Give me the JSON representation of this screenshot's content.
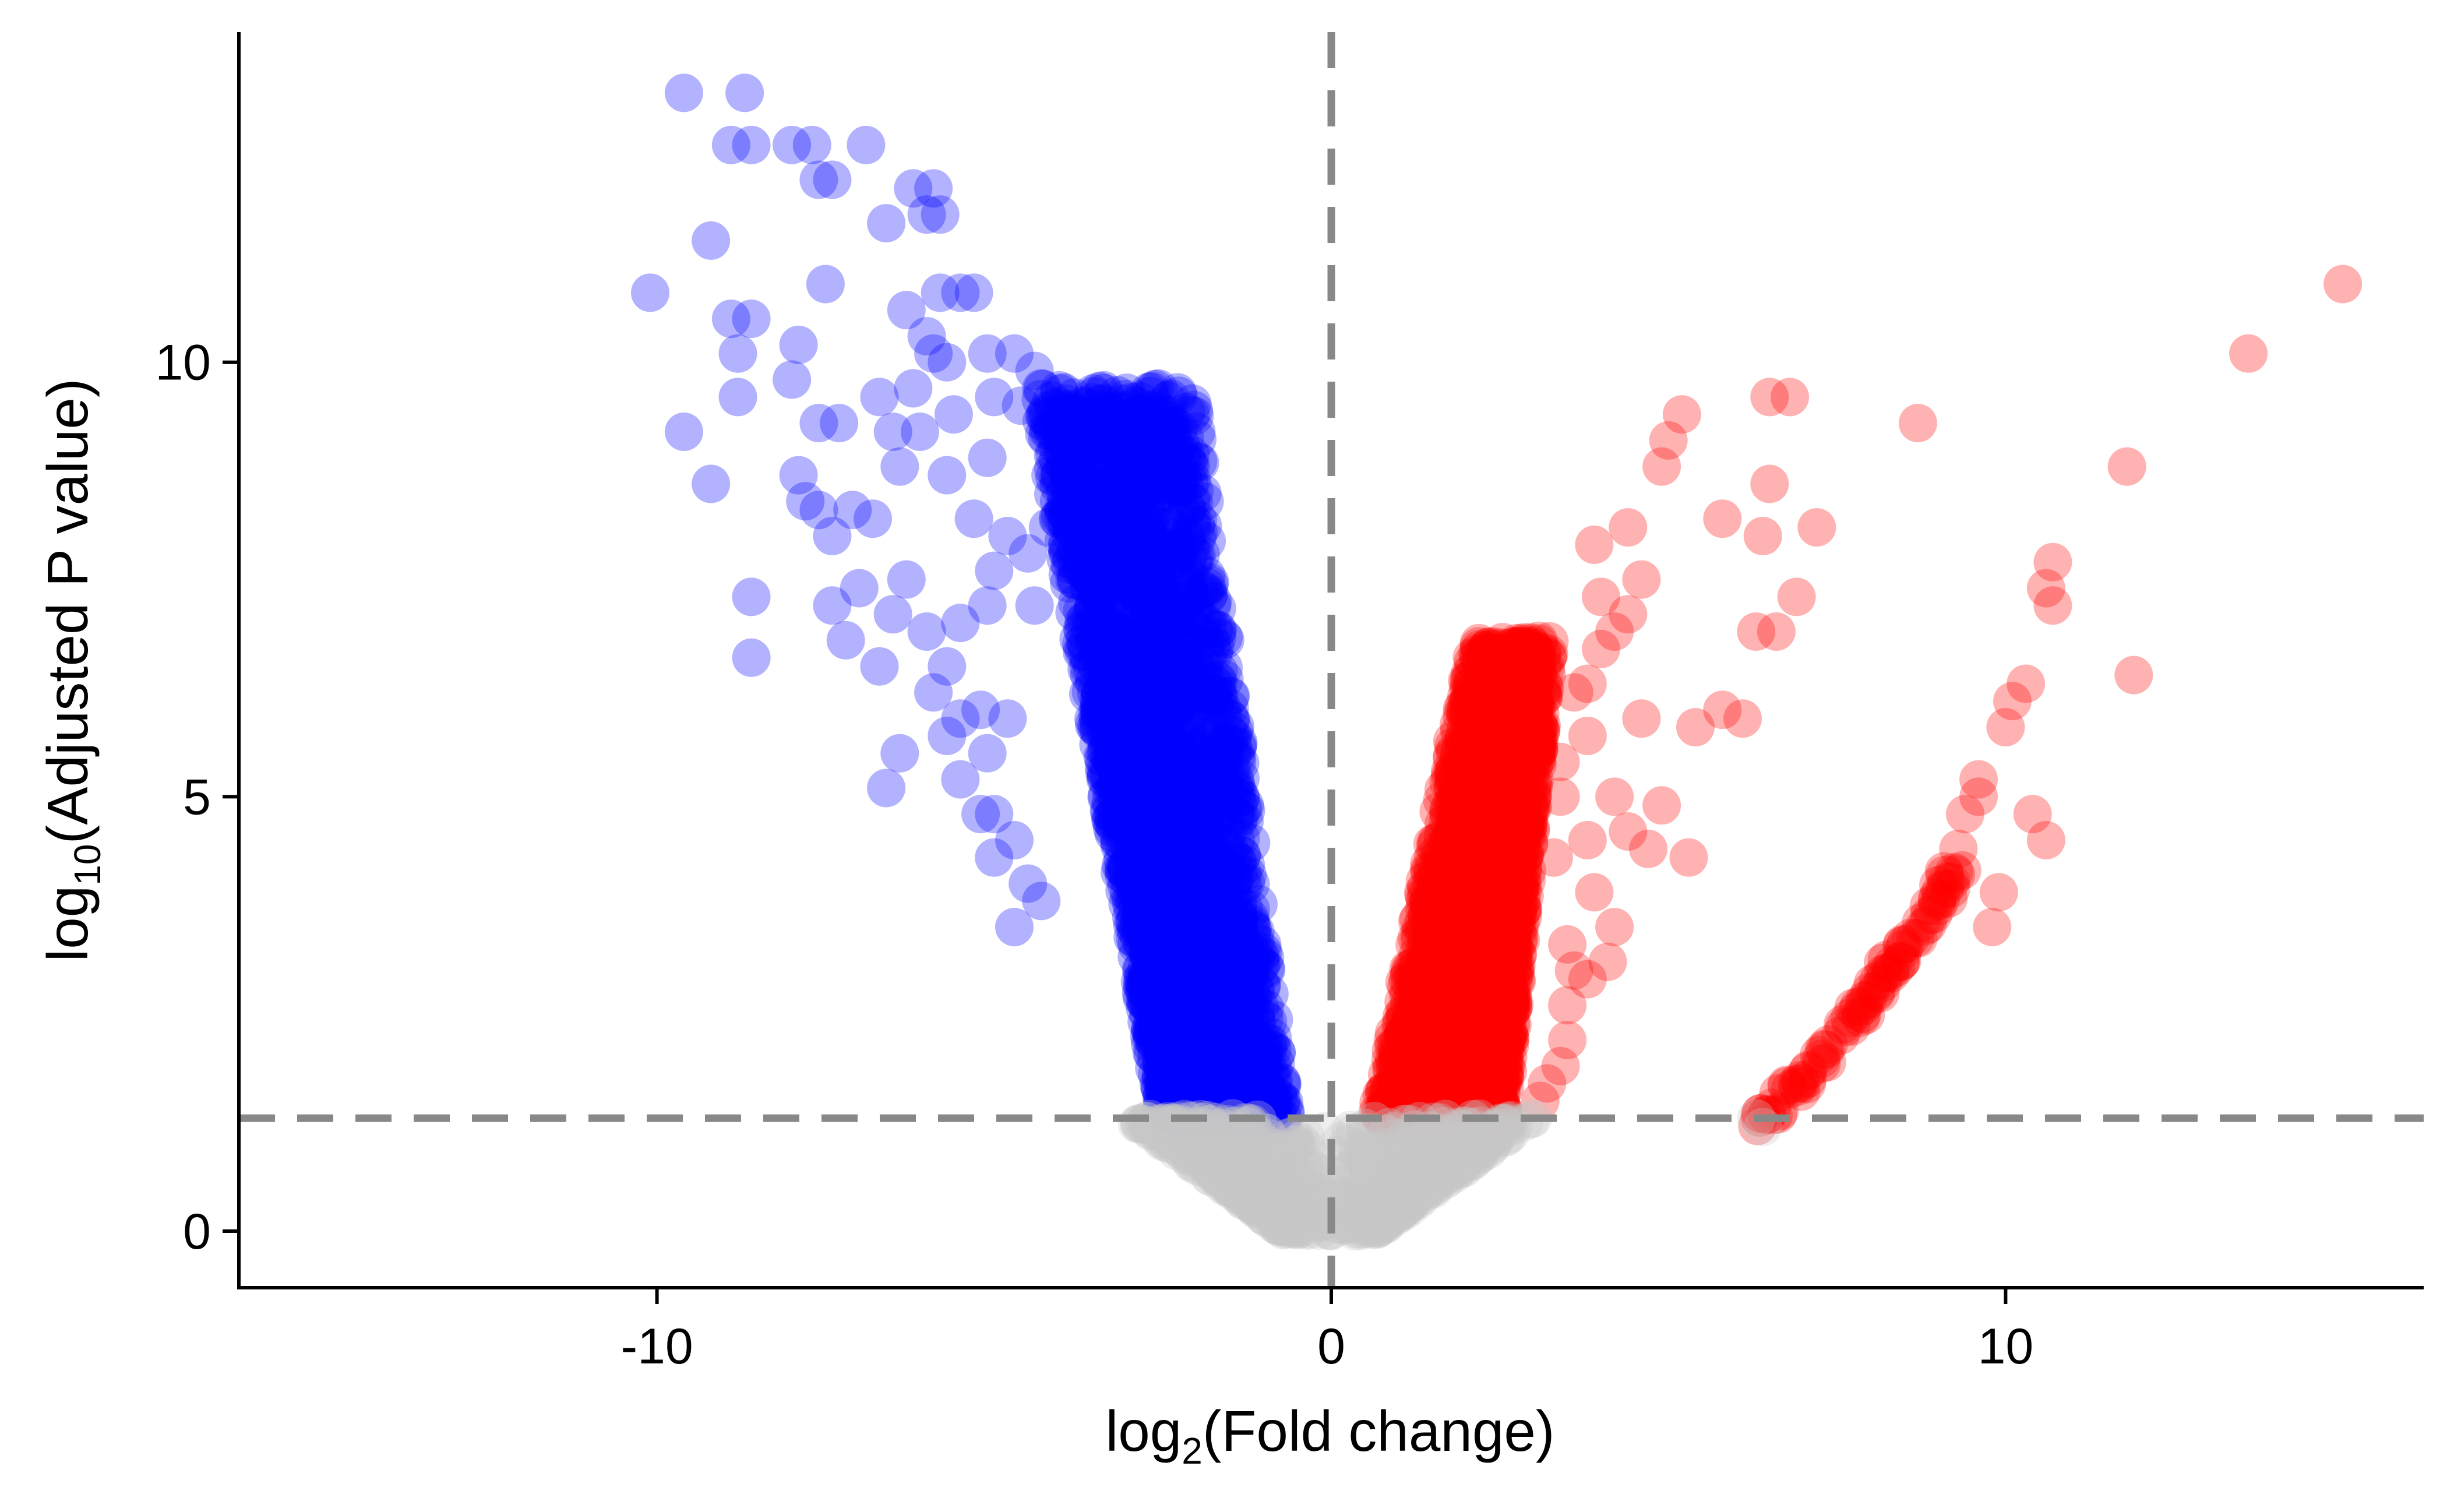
{
  "chart_data": {
    "type": "scatter",
    "title": "",
    "xlabel": {
      "base": "log",
      "sub": "2",
      "rest": "(Fold change)"
    },
    "ylabel": {
      "base": "log",
      "sub": "10",
      "rest": "(Adjusted P value)"
    },
    "xlim": [
      -16.2,
      16.2
    ],
    "ylim": [
      -0.65,
      13.8
    ],
    "x_ticks": [
      {
        "value": -10,
        "label": "-10"
      },
      {
        "value": 0,
        "label": "0"
      },
      {
        "value": 10,
        "label": "10"
      }
    ],
    "y_ticks": [
      {
        "value": 0,
        "label": "0"
      },
      {
        "value": 5,
        "label": "5"
      },
      {
        "value": 10,
        "label": "10"
      }
    ],
    "grid": false,
    "legend": "none",
    "thresholds": {
      "x": 0,
      "y": 1.3
    },
    "colors": {
      "down": "#0000ff",
      "up": "#ff0000",
      "ns": "#c8c8c8",
      "threshold_line": "#888888",
      "axis": "#000000"
    },
    "point_opacity": 0.3,
    "series": [
      {
        "color_key": "down",
        "points": [
          [
            -9.6,
            13.1
          ],
          [
            -8.7,
            13.1
          ],
          [
            -8.9,
            12.5
          ],
          [
            -8.6,
            12.5
          ],
          [
            -8.0,
            12.5
          ],
          [
            -7.7,
            12.5
          ],
          [
            -6.9,
            12.5
          ],
          [
            -6.2,
            12.0
          ],
          [
            -5.9,
            12.0
          ],
          [
            -7.6,
            12.1
          ],
          [
            -7.4,
            12.1
          ],
          [
            -6.6,
            11.6
          ],
          [
            -6.0,
            11.7
          ],
          [
            -5.8,
            11.7
          ],
          [
            -9.2,
            11.4
          ],
          [
            -10.1,
            10.8
          ],
          [
            -7.5,
            10.9
          ],
          [
            -6.3,
            10.6
          ],
          [
            -5.8,
            10.8
          ],
          [
            -5.5,
            10.8
          ],
          [
            -5.3,
            10.8
          ],
          [
            -8.9,
            10.5
          ],
          [
            -8.6,
            10.5
          ],
          [
            -8.8,
            10.1
          ],
          [
            -7.9,
            10.2
          ],
          [
            -6.0,
            10.3
          ],
          [
            -5.9,
            10.1
          ],
          [
            -5.7,
            10.0
          ],
          [
            -5.1,
            10.1
          ],
          [
            -4.7,
            10.1
          ],
          [
            -4.4,
            9.9
          ],
          [
            -8.0,
            9.8
          ],
          [
            -8.8,
            9.6
          ],
          [
            -7.6,
            9.3
          ],
          [
            -7.3,
            9.3
          ],
          [
            -6.7,
            9.6
          ],
          [
            -6.2,
            9.7
          ],
          [
            -5.6,
            9.4
          ],
          [
            -5.0,
            9.6
          ],
          [
            -4.6,
            9.5
          ],
          [
            -4.3,
            9.7
          ],
          [
            -9.6,
            9.2
          ],
          [
            -6.5,
            9.2
          ],
          [
            -6.1,
            9.2
          ],
          [
            -6.4,
            8.8
          ],
          [
            -5.7,
            8.7
          ],
          [
            -5.1,
            8.9
          ],
          [
            -9.2,
            8.6
          ],
          [
            -7.9,
            8.7
          ],
          [
            -7.8,
            8.4
          ],
          [
            -7.6,
            8.3
          ],
          [
            -7.1,
            8.3
          ],
          [
            -6.8,
            8.2
          ],
          [
            -7.4,
            8.0
          ],
          [
            -5.3,
            8.2
          ],
          [
            -4.8,
            8.0
          ],
          [
            -4.5,
            7.8
          ],
          [
            -4.2,
            8.1
          ],
          [
            -5.0,
            7.6
          ],
          [
            -6.3,
            7.5
          ],
          [
            -7.0,
            7.4
          ],
          [
            -5.1,
            7.2
          ],
          [
            -4.4,
            7.2
          ],
          [
            -8.6,
            7.3
          ],
          [
            -7.4,
            7.2
          ],
          [
            -6.5,
            7.1
          ],
          [
            -6.0,
            6.9
          ],
          [
            -5.5,
            7.0
          ],
          [
            -7.2,
            6.8
          ],
          [
            -6.7,
            6.5
          ],
          [
            -8.6,
            6.6
          ],
          [
            -5.7,
            6.5
          ],
          [
            -5.9,
            6.2
          ],
          [
            -5.2,
            6.0
          ],
          [
            -4.8,
            5.9
          ],
          [
            -5.5,
            5.9
          ],
          [
            -5.7,
            5.7
          ],
          [
            -5.1,
            5.5
          ],
          [
            -5.5,
            5.2
          ],
          [
            -6.4,
            5.5
          ],
          [
            -6.6,
            5.1
          ],
          [
            -5.0,
            4.8
          ],
          [
            -5.2,
            4.8
          ],
          [
            -4.7,
            4.5
          ],
          [
            -5.0,
            4.3
          ],
          [
            -4.5,
            4.0
          ],
          [
            -4.3,
            3.8
          ],
          [
            -4.7,
            3.5
          ]
        ],
        "band": {
          "x_inner": [
            -0.65,
            -2.05
          ],
          "x_outer": [
            -2.5,
            -4.4
          ],
          "y": [
            1.3,
            9.7
          ],
          "count": 2400
        }
      },
      {
        "color_key": "up",
        "points": [
          [
            15.0,
            10.9
          ],
          [
            13.6,
            10.1
          ],
          [
            11.8,
            8.8
          ],
          [
            11.9,
            6.4
          ],
          [
            10.7,
            7.7
          ],
          [
            10.6,
            7.4
          ],
          [
            10.7,
            7.2
          ],
          [
            10.3,
            6.3
          ],
          [
            10.1,
            6.1
          ],
          [
            10.0,
            5.8
          ],
          [
            10.4,
            4.8
          ],
          [
            10.6,
            4.5
          ],
          [
            9.6,
            5.2
          ],
          [
            9.6,
            5.0
          ],
          [
            9.4,
            4.8
          ],
          [
            9.3,
            4.4
          ],
          [
            9.1,
            4.1
          ],
          [
            9.9,
            3.9
          ],
          [
            9.8,
            3.5
          ],
          [
            8.7,
            9.3
          ],
          [
            6.5,
            9.6
          ],
          [
            6.8,
            9.6
          ],
          [
            5.2,
            9.4
          ],
          [
            5.0,
            9.1
          ],
          [
            4.9,
            8.8
          ],
          [
            6.5,
            8.6
          ],
          [
            5.8,
            8.2
          ],
          [
            7.2,
            8.1
          ],
          [
            6.4,
            8.0
          ],
          [
            6.9,
            7.3
          ],
          [
            6.6,
            6.9
          ],
          [
            6.3,
            6.9
          ],
          [
            5.8,
            6.0
          ],
          [
            6.1,
            5.9
          ],
          [
            5.4,
            5.8
          ],
          [
            4.6,
            5.9
          ],
          [
            4.9,
            4.9
          ],
          [
            5.3,
            4.3
          ],
          [
            4.7,
            4.4
          ],
          [
            4.4,
            4.6
          ],
          [
            4.2,
            5.0
          ],
          [
            4.6,
            7.5
          ],
          [
            4.4,
            8.1
          ],
          [
            3.9,
            7.9
          ],
          [
            4.0,
            7.3
          ],
          [
            4.4,
            7.1
          ],
          [
            4.0,
            6.7
          ],
          [
            3.8,
            6.3
          ],
          [
            3.8,
            5.7
          ],
          [
            4.2,
            6.9
          ],
          [
            3.6,
            6.2
          ],
          [
            3.4,
            5.4
          ],
          [
            3.4,
            5.0
          ],
          [
            3.3,
            4.3
          ],
          [
            3.8,
            4.5
          ],
          [
            3.9,
            3.9
          ],
          [
            4.2,
            3.5
          ],
          [
            4.1,
            3.1
          ],
          [
            3.8,
            2.9
          ],
          [
            3.5,
            2.6
          ],
          [
            3.5,
            2.2
          ],
          [
            3.4,
            1.9
          ],
          [
            3.2,
            1.7
          ],
          [
            3.1,
            1.5
          ],
          [
            3.5,
            3.3
          ],
          [
            3.6,
            3.0
          ]
        ],
        "band": {
          "x_inner": [
            0.65,
            2.1
          ],
          "x_outer": [
            2.55,
            3.25
          ],
          "y": [
            1.3,
            6.8
          ],
          "count": 2200
        },
        "curve": {
          "x": [
            6.3,
            9.3
          ],
          "y": [
            1.25,
            4.2
          ],
          "count": 90
        }
      },
      {
        "color_key": "ns",
        "points": [
          [
            0,
            0
          ],
          [
            6.4,
            1.2
          ],
          [
            6.3,
            1.3
          ]
        ],
        "cone": {
          "x_max": [
            0.7,
            3.0
          ],
          "y_max": 1.3,
          "count": 900
        }
      }
    ]
  }
}
